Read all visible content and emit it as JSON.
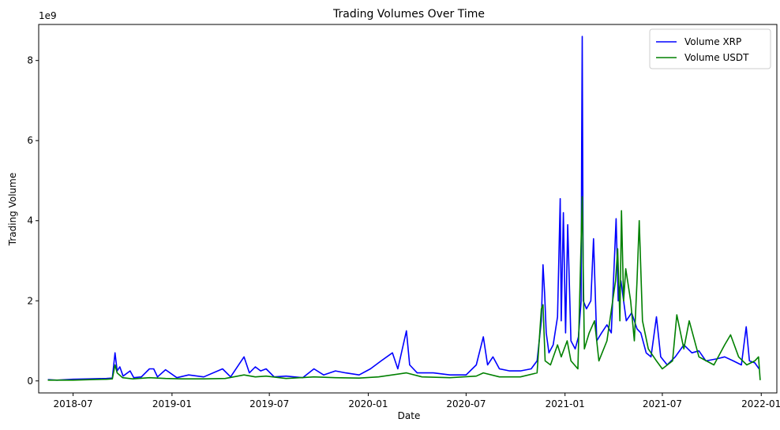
{
  "chart_data": {
    "type": "line",
    "title": "Trading Volumes Over Time",
    "xlabel": "Date",
    "ylabel": "Trading Volume",
    "y_offset_label": "1e9",
    "xlim": [
      "2018-04-28",
      "2022-01-30"
    ],
    "ylim": [
      -0.3,
      8.9
    ],
    "x_ticks": [
      "2018-07-01",
      "2019-01-01",
      "2019-07-01",
      "2020-01-01",
      "2020-07-01",
      "2021-01-01",
      "2021-07-01",
      "2022-01-01"
    ],
    "x_tick_labels": [
      "2018-07",
      "2019-01",
      "2019-07",
      "2020-01",
      "2020-07",
      "2021-01",
      "2021-07",
      "2022-01"
    ],
    "y_ticks": [
      0,
      2,
      4,
      6,
      8
    ],
    "y_tick_labels": [
      "0",
      "2",
      "4",
      "6",
      "8"
    ],
    "grid": false,
    "legend_position": "top-right",
    "series": [
      {
        "name": "Volume XRP",
        "color": "#0000ff",
        "points": [
          [
            "2018-05-15",
            0.03
          ],
          [
            "2018-06-01",
            0.02
          ],
          [
            "2018-07-01",
            0.04
          ],
          [
            "2018-08-01",
            0.05
          ],
          [
            "2018-09-01",
            0.06
          ],
          [
            "2018-09-12",
            0.07
          ],
          [
            "2018-09-17",
            0.7
          ],
          [
            "2018-09-21",
            0.25
          ],
          [
            "2018-09-26",
            0.35
          ],
          [
            "2018-10-02",
            0.12
          ],
          [
            "2018-10-15",
            0.25
          ],
          [
            "2018-10-22",
            0.08
          ],
          [
            "2018-11-05",
            0.1
          ],
          [
            "2018-11-20",
            0.3
          ],
          [
            "2018-11-28",
            0.3
          ],
          [
            "2018-12-05",
            0.1
          ],
          [
            "2018-12-20",
            0.28
          ],
          [
            "2019-01-10",
            0.08
          ],
          [
            "2019-02-01",
            0.15
          ],
          [
            "2019-03-01",
            0.1
          ],
          [
            "2019-04-05",
            0.3
          ],
          [
            "2019-04-20",
            0.1
          ],
          [
            "2019-05-15",
            0.6
          ],
          [
            "2019-05-25",
            0.2
          ],
          [
            "2019-06-05",
            0.35
          ],
          [
            "2019-06-15",
            0.25
          ],
          [
            "2019-06-25",
            0.3
          ],
          [
            "2019-07-10",
            0.1
          ],
          [
            "2019-08-01",
            0.12
          ],
          [
            "2019-09-01",
            0.08
          ],
          [
            "2019-09-22",
            0.3
          ],
          [
            "2019-10-10",
            0.15
          ],
          [
            "2019-11-01",
            0.25
          ],
          [
            "2019-11-20",
            0.2
          ],
          [
            "2019-12-15",
            0.15
          ],
          [
            "2020-01-05",
            0.3
          ],
          [
            "2020-01-25",
            0.5
          ],
          [
            "2020-02-15",
            0.7
          ],
          [
            "2020-02-25",
            0.3
          ],
          [
            "2020-03-12",
            1.25
          ],
          [
            "2020-03-18",
            0.4
          ],
          [
            "2020-04-01",
            0.2
          ],
          [
            "2020-05-01",
            0.2
          ],
          [
            "2020-06-01",
            0.15
          ],
          [
            "2020-07-01",
            0.15
          ],
          [
            "2020-07-20",
            0.4
          ],
          [
            "2020-08-02",
            1.1
          ],
          [
            "2020-08-10",
            0.4
          ],
          [
            "2020-08-20",
            0.6
          ],
          [
            "2020-09-01",
            0.3
          ],
          [
            "2020-09-20",
            0.25
          ],
          [
            "2020-10-10",
            0.25
          ],
          [
            "2020-10-30",
            0.3
          ],
          [
            "2020-11-10",
            0.5
          ],
          [
            "2020-11-18",
            1.5
          ],
          [
            "2020-11-21",
            2.9
          ],
          [
            "2020-11-24",
            2.2
          ],
          [
            "2020-11-27",
            1.2
          ],
          [
            "2020-12-02",
            0.7
          ],
          [
            "2020-12-10",
            0.9
          ],
          [
            "2020-12-18",
            1.6
          ],
          [
            "2020-12-23",
            4.55
          ],
          [
            "2020-12-25",
            1.5
          ],
          [
            "2020-12-29",
            4.2
          ],
          [
            "2021-01-02",
            1.2
          ],
          [
            "2021-01-06",
            3.9
          ],
          [
            "2021-01-12",
            1.0
          ],
          [
            "2021-01-20",
            0.8
          ],
          [
            "2021-01-26",
            1.1
          ],
          [
            "2021-01-31",
            2.0
          ],
          [
            "2021-02-01",
            5.9
          ],
          [
            "2021-02-02",
            8.6
          ],
          [
            "2021-02-04",
            2.0
          ],
          [
            "2021-02-10",
            1.8
          ],
          [
            "2021-02-18",
            2.0
          ],
          [
            "2021-02-23",
            3.55
          ],
          [
            "2021-03-01",
            1.0
          ],
          [
            "2021-03-10",
            1.2
          ],
          [
            "2021-03-20",
            1.4
          ],
          [
            "2021-03-28",
            1.2
          ],
          [
            "2021-04-06",
            4.05
          ],
          [
            "2021-04-10",
            2.0
          ],
          [
            "2021-04-15",
            2.5
          ],
          [
            "2021-04-25",
            1.5
          ],
          [
            "2021-05-05",
            1.7
          ],
          [
            "2021-05-15",
            1.3
          ],
          [
            "2021-05-22",
            1.2
          ],
          [
            "2021-06-01",
            0.7
          ],
          [
            "2021-06-10",
            0.6
          ],
          [
            "2021-06-20",
            1.6
          ],
          [
            "2021-06-28",
            0.6
          ],
          [
            "2021-07-10",
            0.4
          ],
          [
            "2021-07-25",
            0.6
          ],
          [
            "2021-08-10",
            0.9
          ],
          [
            "2021-08-25",
            0.7
          ],
          [
            "2021-09-07",
            0.75
          ],
          [
            "2021-09-20",
            0.5
          ],
          [
            "2021-10-10",
            0.55
          ],
          [
            "2021-10-25",
            0.6
          ],
          [
            "2021-11-10",
            0.5
          ],
          [
            "2021-11-25",
            0.4
          ],
          [
            "2021-12-04",
            1.35
          ],
          [
            "2021-12-10",
            0.5
          ],
          [
            "2021-12-20",
            0.45
          ],
          [
            "2021-12-28",
            0.3
          ]
        ]
      },
      {
        "name": "Volume USDT",
        "color": "#008000",
        "points": [
          [
            "2018-05-15",
            0.02
          ],
          [
            "2018-06-01",
            0.02
          ],
          [
            "2018-07-01",
            0.02
          ],
          [
            "2018-08-01",
            0.03
          ],
          [
            "2018-09-01",
            0.04
          ],
          [
            "2018-09-12",
            0.05
          ],
          [
            "2018-09-17",
            0.4
          ],
          [
            "2018-09-21",
            0.2
          ],
          [
            "2018-10-01",
            0.08
          ],
          [
            "2018-10-20",
            0.05
          ],
          [
            "2018-11-20",
            0.08
          ],
          [
            "2018-12-20",
            0.06
          ],
          [
            "2019-01-20",
            0.05
          ],
          [
            "2019-03-01",
            0.05
          ],
          [
            "2019-04-10",
            0.06
          ],
          [
            "2019-05-15",
            0.15
          ],
          [
            "2019-06-05",
            0.1
          ],
          [
            "2019-06-25",
            0.12
          ],
          [
            "2019-08-01",
            0.06
          ],
          [
            "2019-09-22",
            0.1
          ],
          [
            "2019-11-01",
            0.08
          ],
          [
            "2019-12-15",
            0.07
          ],
          [
            "2020-01-20",
            0.1
          ],
          [
            "2020-03-12",
            0.2
          ],
          [
            "2020-04-10",
            0.1
          ],
          [
            "2020-06-01",
            0.08
          ],
          [
            "2020-07-20",
            0.12
          ],
          [
            "2020-08-02",
            0.2
          ],
          [
            "2020-09-01",
            0.1
          ],
          [
            "2020-10-10",
            0.1
          ],
          [
            "2020-11-10",
            0.2
          ],
          [
            "2020-11-18",
            1.8
          ],
          [
            "2020-11-21",
            1.9
          ],
          [
            "2020-11-25",
            0.5
          ],
          [
            "2020-12-05",
            0.4
          ],
          [
            "2020-12-18",
            0.9
          ],
          [
            "2020-12-25",
            0.6
          ],
          [
            "2021-01-05",
            1.0
          ],
          [
            "2021-01-12",
            0.5
          ],
          [
            "2021-01-25",
            0.3
          ],
          [
            "2021-02-02",
            4.6
          ],
          [
            "2021-02-06",
            0.8
          ],
          [
            "2021-02-15",
            1.2
          ],
          [
            "2021-02-25",
            1.5
          ],
          [
            "2021-03-05",
            0.5
          ],
          [
            "2021-03-20",
            1.0
          ],
          [
            "2021-04-05",
            2.5
          ],
          [
            "2021-04-09",
            3.3
          ],
          [
            "2021-04-13",
            1.5
          ],
          [
            "2021-04-16",
            4.25
          ],
          [
            "2021-04-20",
            2.0
          ],
          [
            "2021-04-24",
            2.8
          ],
          [
            "2021-05-03",
            2.0
          ],
          [
            "2021-05-10",
            1.0
          ],
          [
            "2021-05-15",
            2.5
          ],
          [
            "2021-05-19",
            4.0
          ],
          [
            "2021-05-25",
            1.5
          ],
          [
            "2021-06-05",
            0.8
          ],
          [
            "2021-06-20",
            0.5
          ],
          [
            "2021-07-01",
            0.3
          ],
          [
            "2021-07-20",
            0.5
          ],
          [
            "2021-07-28",
            1.65
          ],
          [
            "2021-08-10",
            0.8
          ],
          [
            "2021-08-20",
            1.5
          ],
          [
            "2021-09-07",
            0.6
          ],
          [
            "2021-10-05",
            0.4
          ],
          [
            "2021-10-25",
            0.9
          ],
          [
            "2021-11-05",
            1.15
          ],
          [
            "2021-11-20",
            0.6
          ],
          [
            "2021-12-05",
            0.4
          ],
          [
            "2021-12-20",
            0.5
          ],
          [
            "2021-12-27",
            0.6
          ],
          [
            "2021-12-30",
            0.02
          ]
        ]
      }
    ]
  }
}
